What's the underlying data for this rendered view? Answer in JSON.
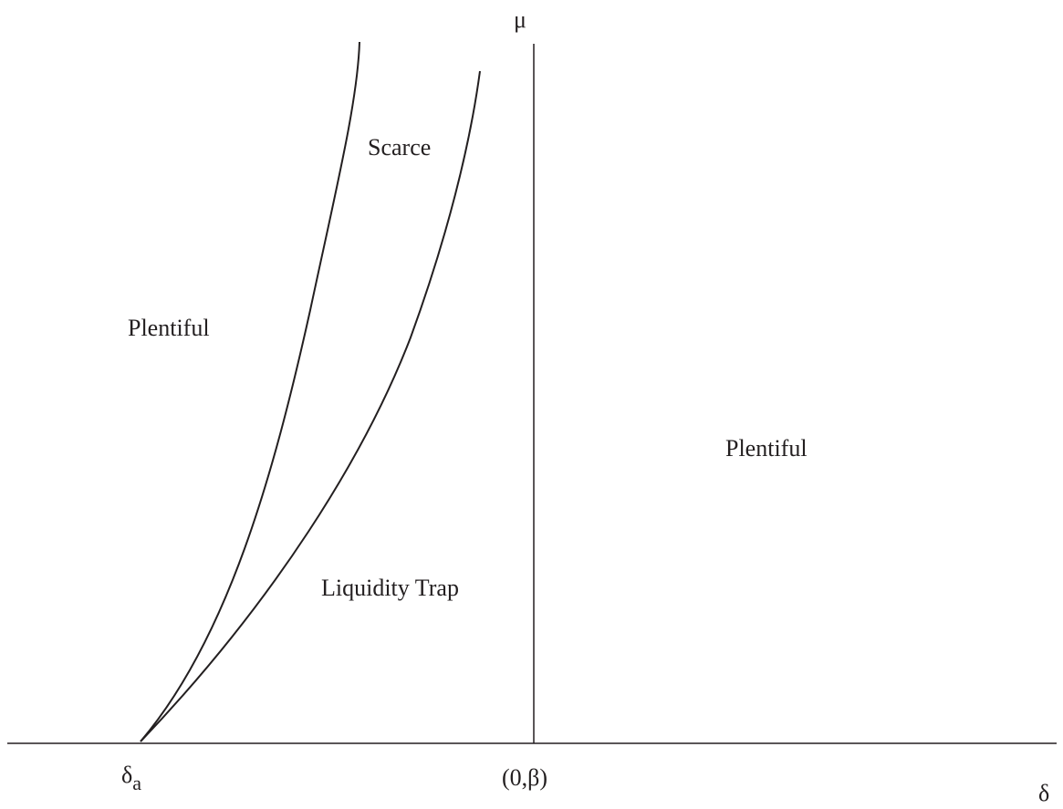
{
  "axes": {
    "y_label": "μ",
    "x_label": "δ",
    "origin_label": "(0,β)",
    "delta_a_symbol": "δ",
    "delta_a_subscript": "a"
  },
  "regions": {
    "plentiful_left": "Plentiful",
    "scarce": "Scarce",
    "liquidity_trap": "Liquidity Trap",
    "plentiful_right": "Plentiful"
  },
  "colors": {
    "ink": "#231f20",
    "background": "#ffffff"
  }
}
